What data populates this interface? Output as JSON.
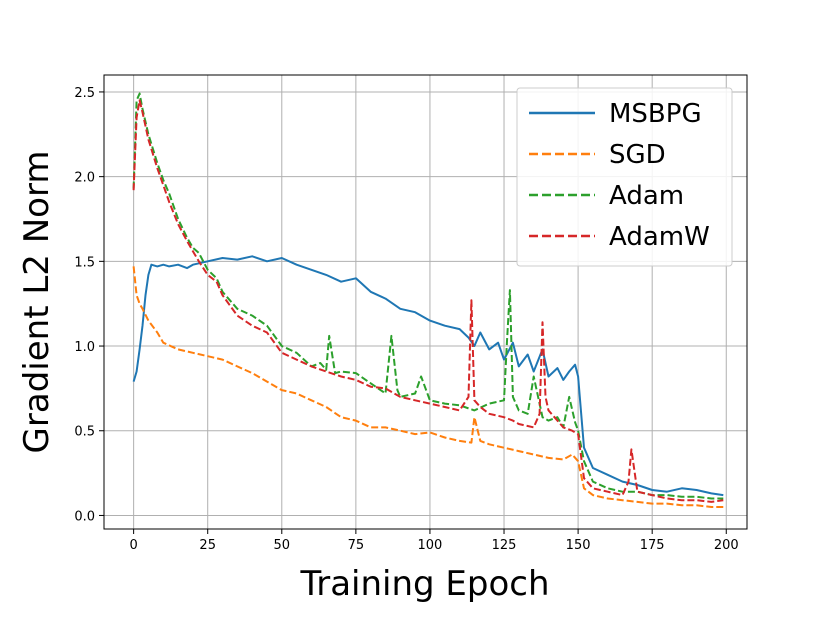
{
  "chart_data": {
    "type": "line",
    "xlabel": "Training Epoch",
    "ylabel": "Gradient L2 Norm",
    "xlim": [
      -10,
      207
    ],
    "ylim": [
      -0.08,
      2.6
    ],
    "xticks": [
      0,
      25,
      50,
      75,
      100,
      125,
      150,
      175,
      200
    ],
    "yticks": [
      0.0,
      0.5,
      1.0,
      1.5,
      2.0,
      2.5
    ],
    "xtick_labels": [
      "0",
      "25",
      "50",
      "75",
      "100",
      "125",
      "150",
      "175",
      "200"
    ],
    "ytick_labels": [
      "0.0",
      "0.5",
      "1.0",
      "1.5",
      "2.0",
      "2.5"
    ],
    "grid": true,
    "legend_position": "top-right",
    "colors": {
      "MSBPG": "#1f77b4",
      "SGD": "#ff7f0e",
      "Adam": "#2ca02c",
      "AdamW": "#d62728"
    },
    "series": [
      {
        "name": "MSBPG",
        "style": "solid",
        "x": [
          0,
          1,
          2,
          3,
          4,
          5,
          6,
          8,
          10,
          12,
          15,
          18,
          20,
          25,
          30,
          35,
          40,
          45,
          50,
          55,
          60,
          65,
          70,
          75,
          80,
          85,
          90,
          95,
          100,
          105,
          110,
          113,
          115,
          117,
          120,
          123,
          125,
          128,
          130,
          133,
          135,
          138,
          140,
          143,
          145,
          147,
          149,
          150,
          152,
          155,
          160,
          165,
          170,
          175,
          180,
          185,
          190,
          195,
          199
        ],
        "y": [
          0.79,
          0.85,
          0.98,
          1.12,
          1.3,
          1.42,
          1.48,
          1.47,
          1.48,
          1.47,
          1.48,
          1.46,
          1.48,
          1.5,
          1.52,
          1.51,
          1.53,
          1.5,
          1.52,
          1.48,
          1.45,
          1.42,
          1.38,
          1.4,
          1.32,
          1.28,
          1.22,
          1.2,
          1.15,
          1.12,
          1.1,
          1.05,
          1.0,
          1.08,
          0.98,
          1.02,
          0.92,
          1.02,
          0.88,
          0.95,
          0.85,
          0.98,
          0.82,
          0.87,
          0.8,
          0.85,
          0.89,
          0.82,
          0.4,
          0.28,
          0.24,
          0.2,
          0.18,
          0.15,
          0.14,
          0.16,
          0.15,
          0.13,
          0.12
        ]
      },
      {
        "name": "SGD",
        "style": "dashed",
        "x": [
          0,
          1,
          2,
          3,
          5,
          8,
          10,
          15,
          20,
          25,
          30,
          35,
          40,
          45,
          50,
          55,
          60,
          65,
          70,
          75,
          80,
          85,
          90,
          95,
          100,
          105,
          110,
          114,
          115,
          117,
          120,
          125,
          130,
          135,
          140,
          145,
          148,
          150,
          152,
          155,
          160,
          165,
          170,
          175,
          180,
          185,
          190,
          195,
          199
        ],
        "y": [
          1.47,
          1.3,
          1.25,
          1.22,
          1.15,
          1.08,
          1.02,
          0.98,
          0.96,
          0.94,
          0.92,
          0.88,
          0.84,
          0.79,
          0.74,
          0.72,
          0.68,
          0.64,
          0.58,
          0.56,
          0.52,
          0.52,
          0.5,
          0.48,
          0.49,
          0.46,
          0.44,
          0.43,
          0.58,
          0.44,
          0.42,
          0.4,
          0.38,
          0.36,
          0.34,
          0.33,
          0.36,
          0.32,
          0.16,
          0.12,
          0.1,
          0.09,
          0.08,
          0.07,
          0.07,
          0.06,
          0.06,
          0.05,
          0.05
        ]
      },
      {
        "name": "Adam",
        "style": "dashed",
        "x": [
          0,
          1,
          2,
          3,
          5,
          8,
          10,
          12,
          15,
          18,
          20,
          22,
          25,
          28,
          30,
          35,
          40,
          45,
          50,
          55,
          60,
          63,
          65,
          66,
          68,
          70,
          75,
          80,
          85,
          87,
          89,
          90,
          95,
          97,
          100,
          105,
          110,
          115,
          120,
          125,
          126,
          127,
          128,
          130,
          133,
          135,
          138,
          140,
          143,
          145,
          147,
          149,
          150,
          152,
          155,
          160,
          165,
          170,
          175,
          180,
          185,
          190,
          195,
          199
        ],
        "y": [
          1.93,
          2.45,
          2.49,
          2.4,
          2.25,
          2.08,
          1.98,
          1.9,
          1.75,
          1.64,
          1.58,
          1.55,
          1.45,
          1.4,
          1.32,
          1.22,
          1.18,
          1.12,
          1.0,
          0.96,
          0.88,
          0.9,
          0.86,
          1.06,
          0.84,
          0.85,
          0.84,
          0.78,
          0.72,
          1.06,
          0.74,
          0.7,
          0.72,
          0.82,
          0.68,
          0.66,
          0.65,
          0.62,
          0.66,
          0.68,
          1.03,
          1.33,
          0.7,
          0.62,
          0.6,
          0.82,
          0.58,
          0.56,
          0.58,
          0.52,
          0.7,
          0.55,
          0.5,
          0.32,
          0.2,
          0.16,
          0.14,
          0.14,
          0.12,
          0.12,
          0.11,
          0.11,
          0.1,
          0.1
        ]
      },
      {
        "name": "AdamW",
        "style": "dashed",
        "x": [
          0,
          1,
          2,
          3,
          5,
          8,
          10,
          12,
          15,
          18,
          20,
          22,
          25,
          28,
          30,
          35,
          40,
          45,
          50,
          55,
          60,
          65,
          70,
          75,
          80,
          85,
          90,
          95,
          100,
          105,
          110,
          113,
          114,
          115,
          117,
          120,
          125,
          128,
          130,
          135,
          137,
          138,
          139,
          140,
          143,
          145,
          148,
          150,
          152,
          155,
          160,
          165,
          167,
          168,
          170,
          175,
          180,
          185,
          190,
          195,
          199
        ],
        "y": [
          1.92,
          2.35,
          2.45,
          2.38,
          2.22,
          2.05,
          1.95,
          1.85,
          1.72,
          1.62,
          1.56,
          1.5,
          1.42,
          1.38,
          1.3,
          1.18,
          1.12,
          1.08,
          0.96,
          0.92,
          0.88,
          0.85,
          0.82,
          0.8,
          0.76,
          0.75,
          0.7,
          0.68,
          0.66,
          0.64,
          0.62,
          0.7,
          1.27,
          0.68,
          0.64,
          0.6,
          0.58,
          0.56,
          0.54,
          0.52,
          0.6,
          1.14,
          0.7,
          0.62,
          0.56,
          0.52,
          0.5,
          0.48,
          0.22,
          0.16,
          0.14,
          0.12,
          0.2,
          0.39,
          0.14,
          0.12,
          0.1,
          0.09,
          0.09,
          0.08,
          0.09
        ]
      }
    ]
  }
}
